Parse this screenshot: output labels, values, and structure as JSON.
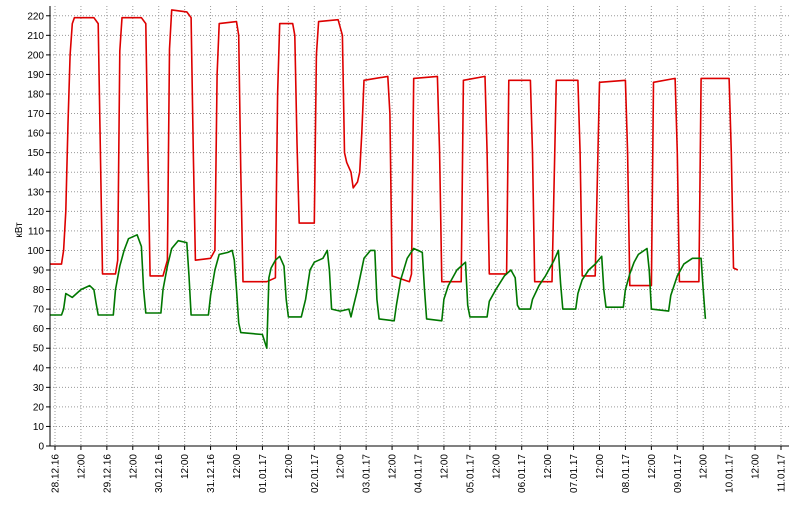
{
  "chart_data": {
    "type": "line",
    "title": "",
    "ylabel": "кВт",
    "xlabel": "",
    "ylim": [
      0,
      225
    ],
    "ytick_step": 10,
    "grid": true,
    "x_unit": "hours_from_first_tick",
    "xlim": [
      0,
      336
    ],
    "x_ticks": [
      {
        "pos": 0,
        "label": "28.12.16"
      },
      {
        "pos": 12,
        "label": "12:00"
      },
      {
        "pos": 24,
        "label": "29.12.16"
      },
      {
        "pos": 36,
        "label": "12:00"
      },
      {
        "pos": 48,
        "label": "30.12.16"
      },
      {
        "pos": 60,
        "label": "12:00"
      },
      {
        "pos": 72,
        "label": "31.12.16"
      },
      {
        "pos": 84,
        "label": "12:00"
      },
      {
        "pos": 96,
        "label": "01.01.17"
      },
      {
        "pos": 108,
        "label": "12:00"
      },
      {
        "pos": 120,
        "label": "02.01.17"
      },
      {
        "pos": 132,
        "label": "12:00"
      },
      {
        "pos": 144,
        "label": "03.01.17"
      },
      {
        "pos": 156,
        "label": "12:00"
      },
      {
        "pos": 168,
        "label": "04.01.17"
      },
      {
        "pos": 180,
        "label": "12:00"
      },
      {
        "pos": 192,
        "label": "05.01.17"
      },
      {
        "pos": 204,
        "label": "12:00"
      },
      {
        "pos": 216,
        "label": "06.01.17"
      },
      {
        "pos": 228,
        "label": "12:00"
      },
      {
        "pos": 240,
        "label": "07.01.17"
      },
      {
        "pos": 252,
        "label": "12:00"
      },
      {
        "pos": 264,
        "label": "08.01.17"
      },
      {
        "pos": 276,
        "label": "12:00"
      },
      {
        "pos": 288,
        "label": "09.01.17"
      },
      {
        "pos": 300,
        "label": "12:00"
      },
      {
        "pos": 312,
        "label": "10.01.17"
      },
      {
        "pos": 324,
        "label": "12:00"
      },
      {
        "pos": 336,
        "label": "11.01.17"
      }
    ],
    "series": [
      {
        "color": "#dd0000",
        "points": [
          [
            -4,
            93
          ],
          [
            3,
            93
          ],
          [
            4,
            100
          ],
          [
            5,
            120
          ],
          [
            6,
            165
          ],
          [
            7,
            200
          ],
          [
            8,
            216
          ],
          [
            9,
            219
          ],
          [
            18,
            219
          ],
          [
            20,
            216
          ],
          [
            21,
            150
          ],
          [
            22,
            88
          ],
          [
            28,
            88
          ],
          [
            29,
            95
          ],
          [
            30,
            202
          ],
          [
            31,
            219
          ],
          [
            40,
            219
          ],
          [
            42,
            216
          ],
          [
            43,
            150
          ],
          [
            44,
            87
          ],
          [
            50,
            87
          ],
          [
            52,
            95
          ],
          [
            53,
            203
          ],
          [
            54,
            223
          ],
          [
            61,
            222
          ],
          [
            63,
            219
          ],
          [
            64,
            150
          ],
          [
            65,
            95
          ],
          [
            72,
            96
          ],
          [
            74,
            100
          ],
          [
            75,
            190
          ],
          [
            76,
            216
          ],
          [
            84,
            217
          ],
          [
            85,
            210
          ],
          [
            86,
            140
          ],
          [
            87,
            84
          ],
          [
            98,
            84
          ],
          [
            102,
            86
          ],
          [
            103,
            180
          ],
          [
            104,
            216
          ],
          [
            110,
            216
          ],
          [
            111,
            210
          ],
          [
            112,
            155
          ],
          [
            113,
            114
          ],
          [
            120,
            114
          ],
          [
            121,
            200
          ],
          [
            122,
            217
          ],
          [
            131,
            218
          ],
          [
            133,
            210
          ],
          [
            134,
            150
          ],
          [
            135,
            145
          ],
          [
            137,
            140
          ],
          [
            138,
            132
          ],
          [
            140,
            135
          ],
          [
            141,
            140
          ],
          [
            142,
            160
          ],
          [
            143,
            187
          ],
          [
            154,
            189
          ],
          [
            155,
            170
          ],
          [
            156,
            87
          ],
          [
            164,
            84
          ],
          [
            165,
            88
          ],
          [
            166,
            188
          ],
          [
            177,
            189
          ],
          [
            178,
            150
          ],
          [
            179,
            84
          ],
          [
            188,
            84
          ],
          [
            189,
            187
          ],
          [
            199,
            189
          ],
          [
            200,
            150
          ],
          [
            201,
            88
          ],
          [
            209,
            88
          ],
          [
            210,
            187
          ],
          [
            220,
            187
          ],
          [
            221,
            150
          ],
          [
            222,
            84
          ],
          [
            230,
            84
          ],
          [
            232,
            187
          ],
          [
            242,
            187
          ],
          [
            243,
            150
          ],
          [
            244,
            87
          ],
          [
            250,
            87
          ],
          [
            252,
            186
          ],
          [
            264,
            187
          ],
          [
            265,
            150
          ],
          [
            266,
            82
          ],
          [
            276,
            82
          ],
          [
            277,
            186
          ],
          [
            287,
            188
          ],
          [
            288,
            150
          ],
          [
            289,
            84
          ],
          [
            298,
            84
          ],
          [
            299,
            188
          ],
          [
            312,
            188
          ],
          [
            313,
            150
          ],
          [
            314,
            91
          ],
          [
            316,
            90
          ]
        ]
      },
      {
        "color": "#007700",
        "points": [
          [
            -4,
            67
          ],
          [
            3,
            67
          ],
          [
            4,
            70
          ],
          [
            5,
            78
          ],
          [
            8,
            76
          ],
          [
            12,
            80
          ],
          [
            16,
            82
          ],
          [
            18,
            80
          ],
          [
            19,
            73
          ],
          [
            20,
            67
          ],
          [
            27,
            67
          ],
          [
            28,
            80
          ],
          [
            30,
            92
          ],
          [
            32,
            100
          ],
          [
            34,
            106
          ],
          [
            38,
            108
          ],
          [
            40,
            102
          ],
          [
            41,
            80
          ],
          [
            42,
            68
          ],
          [
            49,
            68
          ],
          [
            50,
            80
          ],
          [
            52,
            92
          ],
          [
            54,
            101
          ],
          [
            57,
            105
          ],
          [
            61,
            104
          ],
          [
            62,
            87
          ],
          [
            63,
            67
          ],
          [
            71,
            67
          ],
          [
            72,
            77
          ],
          [
            74,
            90
          ],
          [
            76,
            98
          ],
          [
            80,
            99
          ],
          [
            82,
            100
          ],
          [
            83,
            95
          ],
          [
            84,
            80
          ],
          [
            85,
            63
          ],
          [
            86,
            58
          ],
          [
            96,
            57
          ],
          [
            98,
            50
          ],
          [
            99,
            86
          ],
          [
            100,
            91
          ],
          [
            102,
            95
          ],
          [
            104,
            97
          ],
          [
            106,
            92
          ],
          [
            107,
            75
          ],
          [
            108,
            66
          ],
          [
            114,
            66
          ],
          [
            116,
            75
          ],
          [
            118,
            90
          ],
          [
            120,
            94
          ],
          [
            124,
            96
          ],
          [
            126,
            100
          ],
          [
            127,
            90
          ],
          [
            128,
            70
          ],
          [
            132,
            69
          ],
          [
            136,
            70
          ],
          [
            137,
            66
          ],
          [
            138,
            71
          ],
          [
            140,
            80
          ],
          [
            143,
            96
          ],
          [
            146,
            100
          ],
          [
            148,
            100
          ],
          [
            149,
            75
          ],
          [
            150,
            65
          ],
          [
            157,
            64
          ],
          [
            158,
            72
          ],
          [
            160,
            85
          ],
          [
            163,
            96
          ],
          [
            166,
            101
          ],
          [
            170,
            99
          ],
          [
            171,
            80
          ],
          [
            172,
            65
          ],
          [
            179,
            64
          ],
          [
            180,
            75
          ],
          [
            182,
            82
          ],
          [
            186,
            90
          ],
          [
            190,
            94
          ],
          [
            191,
            72
          ],
          [
            192,
            66
          ],
          [
            200,
            66
          ],
          [
            201,
            74
          ],
          [
            204,
            80
          ],
          [
            208,
            87
          ],
          [
            211,
            90
          ],
          [
            213,
            86
          ],
          [
            214,
            72
          ],
          [
            215,
            70
          ],
          [
            220,
            70
          ],
          [
            221,
            75
          ],
          [
            224,
            82
          ],
          [
            227,
            87
          ],
          [
            231,
            95
          ],
          [
            233,
            100
          ],
          [
            234,
            83
          ],
          [
            235,
            70
          ],
          [
            241,
            70
          ],
          [
            242,
            78
          ],
          [
            244,
            85
          ],
          [
            247,
            90
          ],
          [
            250,
            93
          ],
          [
            253,
            97
          ],
          [
            254,
            80
          ],
          [
            255,
            71
          ],
          [
            263,
            71
          ],
          [
            264,
            80
          ],
          [
            266,
            88
          ],
          [
            268,
            94
          ],
          [
            270,
            98
          ],
          [
            274,
            101
          ],
          [
            275,
            90
          ],
          [
            276,
            70
          ],
          [
            284,
            69
          ],
          [
            285,
            77
          ],
          [
            288,
            87
          ],
          [
            291,
            93
          ],
          [
            295,
            96
          ],
          [
            299,
            96
          ],
          [
            300,
            80
          ],
          [
            301,
            65
          ]
        ]
      }
    ]
  }
}
